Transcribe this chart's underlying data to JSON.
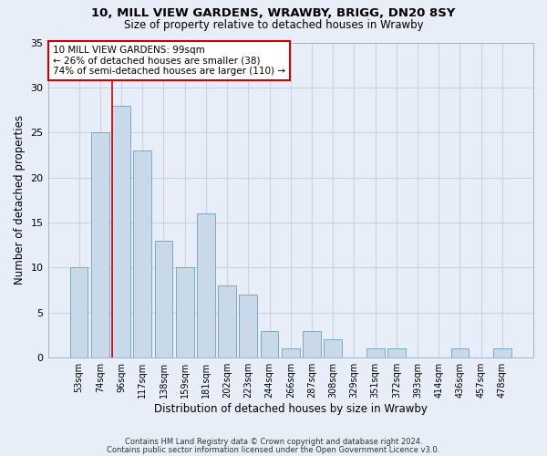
{
  "title1": "10, MILL VIEW GARDENS, WRAWBY, BRIGG, DN20 8SY",
  "title2": "Size of property relative to detached houses in Wrawby",
  "xlabel": "Distribution of detached houses by size in Wrawby",
  "ylabel": "Number of detached properties",
  "categories": [
    "53sqm",
    "74sqm",
    "96sqm",
    "117sqm",
    "138sqm",
    "159sqm",
    "181sqm",
    "202sqm",
    "223sqm",
    "244sqm",
    "266sqm",
    "287sqm",
    "308sqm",
    "329sqm",
    "351sqm",
    "372sqm",
    "393sqm",
    "414sqm",
    "436sqm",
    "457sqm",
    "478sqm"
  ],
  "values": [
    10,
    25,
    28,
    23,
    13,
    10,
    16,
    8,
    7,
    3,
    1,
    3,
    2,
    0,
    1,
    1,
    0,
    0,
    1,
    0,
    1
  ],
  "bar_color": "#c9d9ea",
  "bar_edge_color": "#7aaac8",
  "highlight_index": 2,
  "highlight_line_color": "#cc0000",
  "ylim": [
    0,
    35
  ],
  "yticks": [
    0,
    5,
    10,
    15,
    20,
    25,
    30,
    35
  ],
  "annotation_box_text": "10 MILL VIEW GARDENS: 99sqm\n← 26% of detached houses are smaller (38)\n74% of semi-detached houses are larger (110) →",
  "annotation_box_color": "#ffffff",
  "annotation_box_edge_color": "#cc0000",
  "footer1": "Contains HM Land Registry data © Crown copyright and database right 2024.",
  "footer2": "Contains public sector information licensed under the Open Government Licence v3.0.",
  "background_color": "#e8eef8",
  "grid_color": "#c8d4e4"
}
